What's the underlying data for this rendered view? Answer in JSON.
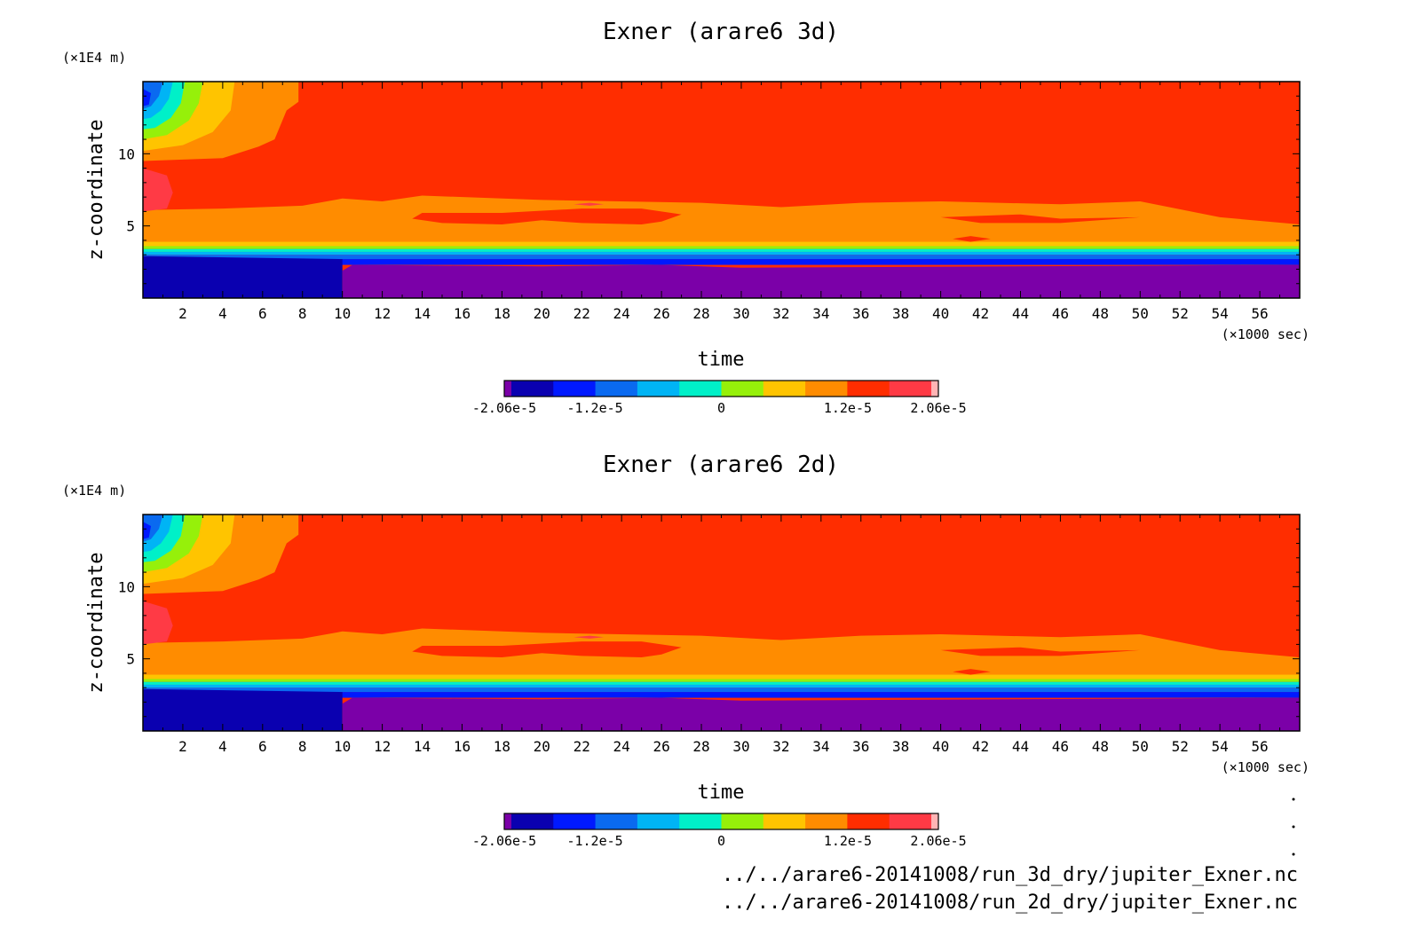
{
  "chart_data": [
    {
      "type": "heatmap",
      "title": "Exner (arare6 3d)",
      "xlabel": "time",
      "ylabel": "z-coordinate",
      "x_unit": "(×1000 sec)",
      "y_unit": "(×1E4 m)",
      "xlim": [
        0,
        58
      ],
      "ylim": [
        0,
        15
      ],
      "x_ticks": [
        2,
        4,
        6,
        8,
        10,
        12,
        14,
        16,
        18,
        20,
        22,
        24,
        26,
        28,
        30,
        32,
        34,
        36,
        38,
        40,
        42,
        44,
        46,
        48,
        50,
        52,
        54,
        56
      ],
      "y_ticks": [
        5,
        10
      ],
      "colorbar": {
        "ticks": [
          "-2.06e-5",
          "-1.2e-5",
          "0",
          "1.2e-5",
          "2.06e-5"
        ],
        "tick_values": [
          -2.06e-05,
          -1.2e-05,
          0,
          1.2e-05,
          2.06e-05
        ],
        "range": [
          -2.06e-05,
          2.06e-05
        ],
        "colors": [
          "#7b00a8",
          "#0a00b0",
          "#0019ff",
          "#0a6af0",
          "#00b4f5",
          "#00f0c8",
          "#96f00a",
          "#ffc400",
          "#ff8c00",
          "#ff2d00",
          "#ff3a45",
          "#ffb4b4"
        ]
      },
      "regions": [
        {
          "level": "1.2e-5 to 1.6e-5",
          "extent_x": [
            0,
            58
          ],
          "extent_y": [
            4,
            15
          ]
        },
        {
          "level": "-2.06e-5 (min)",
          "extent_x": [
            10,
            58
          ],
          "extent_y": [
            0,
            2.3
          ]
        },
        {
          "level": "-1.6e-5",
          "extent_x": [
            0,
            10
          ],
          "extent_y": [
            0,
            3
          ]
        },
        {
          "level": "-1.6e-5 (top-left)",
          "extent_x": [
            0,
            1
          ],
          "extent_y": [
            12,
            15
          ]
        },
        {
          "level": "1.2e-5 to 1.6e-5 (band)",
          "extent_x": [
            0,
            58
          ],
          "extent_y": [
            3.5,
            6
          ]
        }
      ]
    },
    {
      "type": "heatmap",
      "title": "Exner (arare6 2d)",
      "xlabel": "time",
      "ylabel": "z-coordinate",
      "x_unit": "(×1000 sec)",
      "y_unit": "(×1E4 m)",
      "xlim": [
        0,
        58
      ],
      "ylim": [
        0,
        15
      ],
      "x_ticks": [
        2,
        4,
        6,
        8,
        10,
        12,
        14,
        16,
        18,
        20,
        22,
        24,
        26,
        28,
        30,
        32,
        34,
        36,
        38,
        40,
        42,
        44,
        46,
        48,
        50,
        52,
        54,
        56
      ],
      "y_ticks": [
        5,
        10
      ],
      "colorbar": {
        "ticks": [
          "-2.06e-5",
          "-1.2e-5",
          "0",
          "1.2e-5",
          "2.06e-5"
        ],
        "tick_values": [
          -2.06e-05,
          -1.2e-05,
          0,
          1.2e-05,
          2.06e-05
        ],
        "range": [
          -2.06e-05,
          2.06e-05
        ],
        "colors": [
          "#7b00a8",
          "#0a00b0",
          "#0019ff",
          "#0a6af0",
          "#00b4f5",
          "#00f0c8",
          "#96f00a",
          "#ffc400",
          "#ff8c00",
          "#ff2d00",
          "#ff3a45",
          "#ffb4b4"
        ]
      },
      "regions": [
        {
          "level": "1.2e-5 to 1.6e-5",
          "extent_x": [
            0,
            58
          ],
          "extent_y": [
            4,
            15
          ]
        },
        {
          "level": "-2.06e-5 (min)",
          "extent_x": [
            10,
            58
          ],
          "extent_y": [
            0,
            2.3
          ]
        },
        {
          "level": "-1.6e-5",
          "extent_x": [
            0,
            10
          ],
          "extent_y": [
            0,
            3
          ]
        },
        {
          "level": "-1.6e-5 (top-left)",
          "extent_x": [
            0,
            1
          ],
          "extent_y": [
            12,
            15
          ]
        },
        {
          "level": "1.2e-5 to 1.6e-5 (band)",
          "extent_x": [
            0,
            58
          ],
          "extent_y": [
            3.5,
            6
          ]
        }
      ]
    }
  ],
  "footer": {
    "paths": [
      "../../arare6-20141008/run_3d_dry/jupiter_Exner.nc",
      "../../arare6-20141008/run_2d_dry/jupiter_Exner.nc"
    ]
  }
}
